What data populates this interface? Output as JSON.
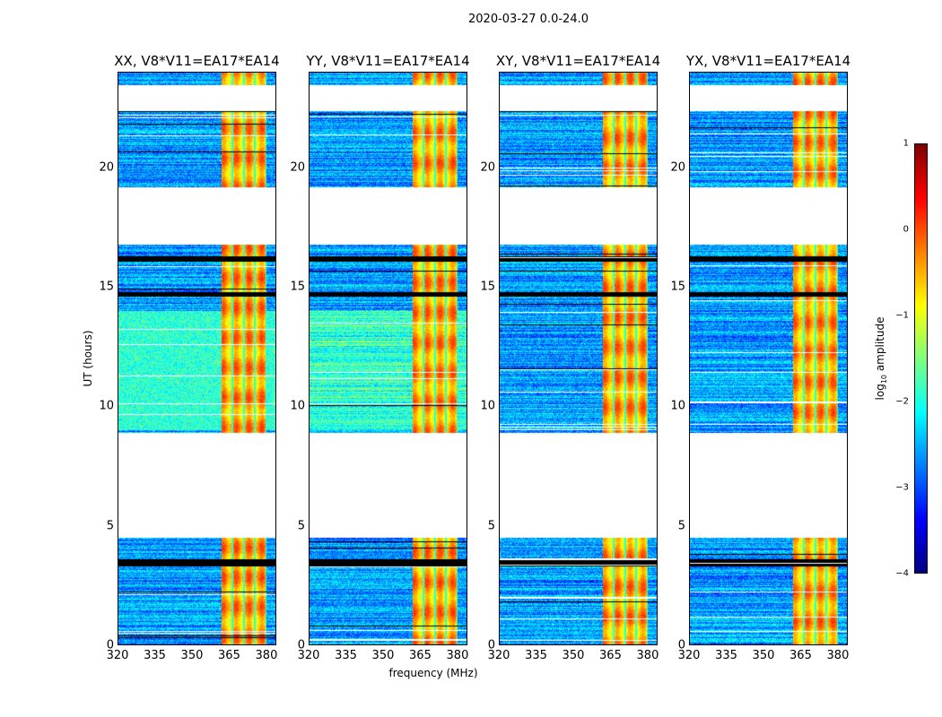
{
  "chart_data": {
    "type": "heatmap",
    "title": "2020-03-27 0.0-24.0",
    "xlabel": "frequency (MHz)",
    "ylabel": "UT (hours)",
    "xlim": [
      320,
      384
    ],
    "ylim": [
      0,
      24
    ],
    "xticks": [
      "320",
      "335",
      "350",
      "365",
      "380"
    ],
    "xtick_values": [
      320,
      335,
      350,
      365,
      380
    ],
    "yticks": [
      "0",
      "5",
      "10",
      "15",
      "20"
    ],
    "ytick_values": [
      0,
      5,
      10,
      15,
      20
    ],
    "panels": [
      {
        "title": "XX, V8*V11=EA17*EA14",
        "seed": 1
      },
      {
        "title": "YY, V8*V11=EA17*EA14",
        "seed": 2
      },
      {
        "title": "XY, V8*V11=EA17*EA14",
        "seed": 3
      },
      {
        "title": "YX, V8*V11=EA17*EA14",
        "seed": 4
      }
    ],
    "data_time_ranges_hours": [
      [
        0,
        4.5
      ],
      [
        8.9,
        16.8
      ],
      [
        19.2,
        22.4
      ],
      [
        23.5,
        24
      ]
    ],
    "flagged_time_ranges_hours": [
      [
        3.3,
        3.6
      ],
      [
        16.1,
        16.3
      ],
      [
        14.6,
        14.8
      ]
    ],
    "bright_band_MHz": [
      362,
      380
    ],
    "band_level_log10": -0.5,
    "background_level_log10": -2.6,
    "colorbar": {
      "label": "log10 amplitude",
      "min": -4,
      "max": 1,
      "ticks": [
        "1",
        "0",
        "−1",
        "−2",
        "−3",
        "−4"
      ],
      "tick_values": [
        1,
        0,
        -1,
        -2,
        -3,
        -4
      ],
      "colormap": "jet"
    }
  }
}
